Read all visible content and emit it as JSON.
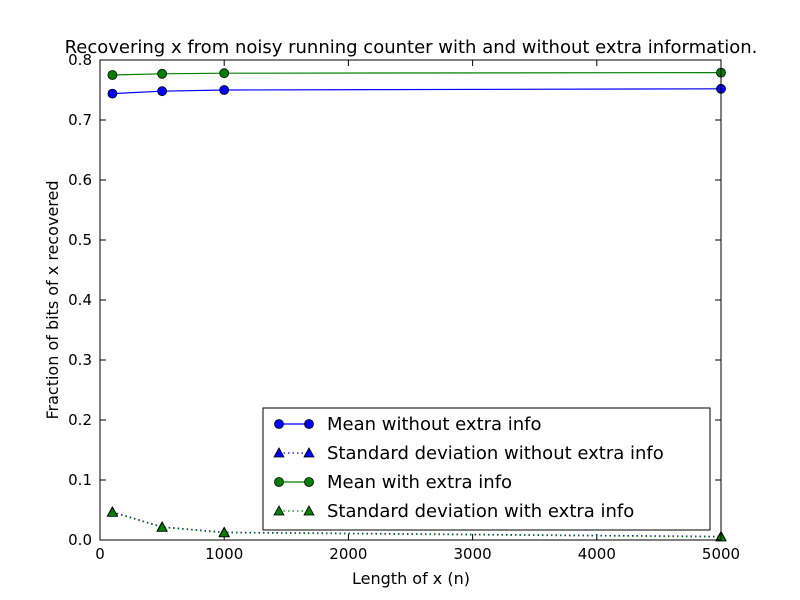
{
  "chart_data": {
    "type": "line",
    "title": "Recovering x from noisy running counter with and without extra information.",
    "xlabel": "Length of x (n)",
    "ylabel": "Fraction of bits of x recovered",
    "xlim": [
      0,
      5000
    ],
    "ylim": [
      0.0,
      0.8
    ],
    "x_ticks": [
      0,
      1000,
      2000,
      3000,
      4000,
      5000
    ],
    "x_tick_labels": [
      "0",
      "1000",
      "2000",
      "3000",
      "4000",
      "5000"
    ],
    "y_ticks": [
      0.0,
      0.1,
      0.2,
      0.3,
      0.4,
      0.5,
      0.6,
      0.7,
      0.8
    ],
    "y_tick_labels": [
      "0.0",
      "0.1",
      "0.2",
      "0.3",
      "0.4",
      "0.5",
      "0.6",
      "0.7",
      "0.8"
    ],
    "grid": false,
    "legend_position": "lower-right",
    "x": [
      100,
      500,
      1000,
      5000
    ],
    "series": [
      {
        "name": "Mean without extra info",
        "values": [
          0.744,
          0.748,
          0.75,
          0.752
        ],
        "color": "#0000ff",
        "marker": "circle",
        "linestyle": "solid"
      },
      {
        "name": "Standard deviation without extra info",
        "values": [
          0.047,
          0.022,
          0.013,
          0.006
        ],
        "color": "#0000ff",
        "marker": "triangle",
        "linestyle": "dotted"
      },
      {
        "name": "Mean with extra info",
        "values": [
          0.775,
          0.777,
          0.778,
          0.779
        ],
        "color": "#008000",
        "marker": "circle",
        "linestyle": "solid"
      },
      {
        "name": "Standard deviation with extra info",
        "values": [
          0.046,
          0.021,
          0.012,
          0.005
        ],
        "color": "#008000",
        "marker": "triangle",
        "linestyle": "dotted"
      }
    ]
  }
}
